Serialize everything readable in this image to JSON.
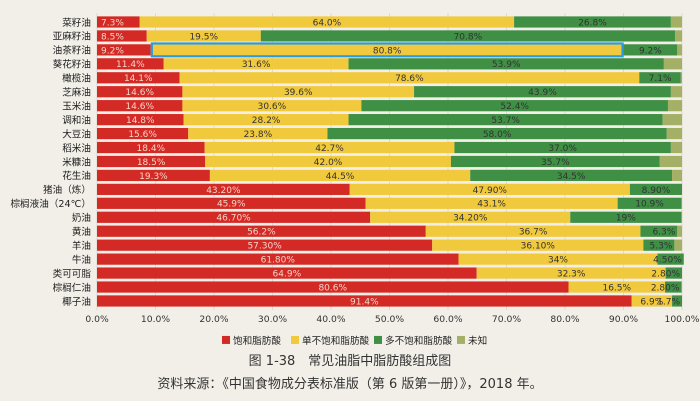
{
  "caption": {
    "figure": "图 1-38　常见油脂中脂肪酸组成图",
    "source": "资料来源：《中国食物成分表标准版（第 6 版第一册）》，2018 年。"
  },
  "colors": {
    "saturated": "#d42a26",
    "mono": "#f1c93d",
    "poly": "#3f8f45",
    "unknown": "#a5b067",
    "highlight": "#2b9be0",
    "label_on_dark": "#f4d6c8",
    "label_on_light": "#333333"
  },
  "chart_data": {
    "type": "bar",
    "orientation": "horizontal",
    "stacked": true,
    "title": "",
    "xlabel": "",
    "ylabel": "",
    "xlim": [
      0,
      100
    ],
    "x_ticks": [
      "0.0%",
      "10.0%",
      "20.0%",
      "30.0%",
      "40.0%",
      "50.0%",
      "60.0%",
      "70.0%",
      "80.0%",
      "90.0%",
      "100.0%"
    ],
    "legend_position": "bottom",
    "categories": [
      "菜籽油",
      "亚麻籽油",
      "油茶籽油",
      "葵花籽油",
      "橄榄油",
      "芝麻油",
      "玉米油",
      "调和油",
      "大豆油",
      "稻米油",
      "米糠油",
      "花生油",
      "猪油（炼）",
      "棕榈液油（24℃）",
      "奶油",
      "黄油",
      "羊油",
      "牛油",
      "类可可脂",
      "棕榈仁油",
      "椰子油"
    ],
    "highlight_category": "油茶籽油",
    "series": [
      {
        "name": "饱和脂肪酸",
        "values": [
          7.3,
          8.5,
          9.2,
          11.4,
          14.1,
          14.6,
          14.6,
          14.8,
          15.6,
          18.4,
          18.5,
          19.3,
          43.2,
          45.9,
          46.7,
          56.2,
          57.3,
          61.8,
          64.9,
          80.6,
          91.4
        ],
        "labels": [
          "7.3%",
          "8.5%",
          "9.2%",
          "11.4%",
          "14.1%",
          "14.6%",
          "14.6%",
          "14.8%",
          "15.6%",
          "18.4%",
          "18.5%",
          "19.3%",
          "43.20%",
          "45.9%",
          "46.70%",
          "56.2%",
          "57.30%",
          "61.80%",
          "64.9%",
          "80.6%",
          "91.4%"
        ]
      },
      {
        "name": "单不饱和脂肪酸",
        "values": [
          64.0,
          19.5,
          80.8,
          31.6,
          78.6,
          39.6,
          30.6,
          28.2,
          23.8,
          42.7,
          42.0,
          44.5,
          47.9,
          43.1,
          34.2,
          36.7,
          36.1,
          34.0,
          32.3,
          16.5,
          6.9
        ],
        "labels": [
          "64.0%",
          "19.5%",
          "80.8%",
          "31.6%",
          "78.6%",
          "39.6%",
          "30.6%",
          "28.2%",
          "23.8%",
          "42.7%",
          "42.0%",
          "44.5%",
          "47.90%",
          "43.1%",
          "34.20%",
          "36.7%",
          "36.10%",
          "34%",
          "32.3%",
          "16.5%",
          "6.9%"
        ]
      },
      {
        "name": "多不饱和脂肪酸",
        "values": [
          26.8,
          70.8,
          9.2,
          53.9,
          7.1,
          43.9,
          52.4,
          53.7,
          58.0,
          37.0,
          35.7,
          34.5,
          8.9,
          10.9,
          19.0,
          6.3,
          5.3,
          4.5,
          2.8,
          2.8,
          1.7
        ],
        "labels": [
          "26.8%",
          "70.8%",
          "9.2%",
          "53.9%",
          "7.1%",
          "43.9%",
          "52.4%",
          "53.7%",
          "58.0%",
          "37.0%",
          "35.7%",
          "34.5%",
          "8.90%",
          "10.9%",
          "19%",
          "6.3%",
          "5.3%",
          "4.50%",
          "2.80%",
          "2.80%",
          "1.7%"
        ]
      },
      {
        "name": "未知",
        "values": [
          1.9,
          1.2,
          0.8,
          3.1,
          0.2,
          1.9,
          2.4,
          3.3,
          2.6,
          1.9,
          3.8,
          1.7,
          0.0,
          0.1,
          0.1,
          0.8,
          1.3,
          0.0,
          0.0,
          0.1,
          0.0
        ],
        "labels": []
      }
    ]
  }
}
